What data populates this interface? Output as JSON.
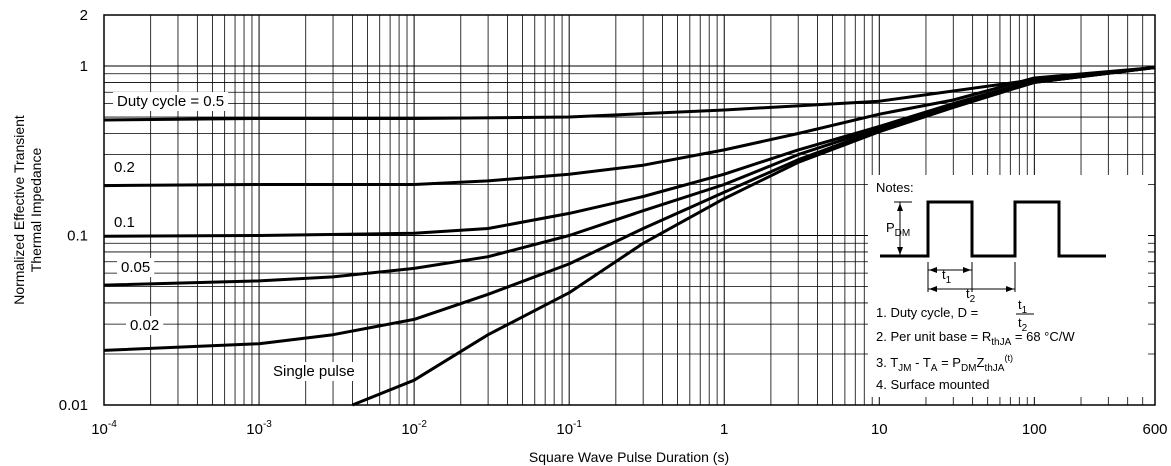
{
  "chart_data": {
    "type": "line",
    "x_scale": "log",
    "y_scale": "log",
    "xlim": [
      0.0001,
      600
    ],
    "ylim": [
      0.01,
      2
    ],
    "grid": true,
    "xlabel": "Square Wave Pulse Duration (s)",
    "ylabel_line1": "Normalized Effective Transient",
    "ylabel_line2": "Thermal Impedance",
    "x_ticks": [
      {
        "value": 0.0001,
        "base": "10",
        "exp": "-4",
        "label": "10^-4"
      },
      {
        "value": 0.001,
        "base": "10",
        "exp": "-3",
        "label": "10^-3"
      },
      {
        "value": 0.01,
        "base": "10",
        "exp": "-2",
        "label": "10^-2"
      },
      {
        "value": 0.1,
        "base": "10",
        "exp": "-1",
        "label": "10^-1"
      },
      {
        "value": 1,
        "base": "1",
        "exp": "",
        "label": "1"
      },
      {
        "value": 10,
        "base": "10",
        "exp": "",
        "label": "10"
      },
      {
        "value": 100,
        "base": "100",
        "exp": "",
        "label": "100"
      },
      {
        "value": 600,
        "base": "600",
        "exp": "",
        "label": "600"
      }
    ],
    "y_ticks": [
      {
        "value": 2,
        "label": "2"
      },
      {
        "value": 1,
        "label": "1"
      },
      {
        "value": 0.1,
        "label": "0.1"
      },
      {
        "value": 0.01,
        "label": "0.01"
      }
    ],
    "series": [
      {
        "name": "Duty cycle = 0.5",
        "points": [
          [
            0.0001,
            0.48
          ],
          [
            0.001,
            0.49
          ],
          [
            0.01,
            0.49
          ],
          [
            0.1,
            0.5
          ],
          [
            1,
            0.55
          ],
          [
            10,
            0.62
          ],
          [
            100,
            0.83
          ],
          [
            600,
            0.98
          ]
        ]
      },
      {
        "name": "0.2",
        "points": [
          [
            0.0001,
            0.197
          ],
          [
            0.001,
            0.2
          ],
          [
            0.01,
            0.2
          ],
          [
            0.03,
            0.21
          ],
          [
            0.1,
            0.23
          ],
          [
            0.3,
            0.26
          ],
          [
            1,
            0.32
          ],
          [
            3,
            0.4
          ],
          [
            10,
            0.52
          ],
          [
            30,
            0.63
          ],
          [
            100,
            0.85
          ],
          [
            600,
            0.98
          ]
        ]
      },
      {
        "name": "0.1",
        "points": [
          [
            0.0001,
            0.099
          ],
          [
            0.001,
            0.1
          ],
          [
            0.01,
            0.103
          ],
          [
            0.03,
            0.11
          ],
          [
            0.1,
            0.135
          ],
          [
            0.3,
            0.17
          ],
          [
            1,
            0.23
          ],
          [
            3,
            0.32
          ],
          [
            10,
            0.44
          ],
          [
            30,
            0.6
          ],
          [
            100,
            0.82
          ],
          [
            600,
            0.98
          ]
        ]
      },
      {
        "name": "0.05",
        "points": [
          [
            0.0001,
            0.051
          ],
          [
            0.001,
            0.054
          ],
          [
            0.003,
            0.057
          ],
          [
            0.01,
            0.064
          ],
          [
            0.03,
            0.075
          ],
          [
            0.1,
            0.1
          ],
          [
            0.3,
            0.14
          ],
          [
            1,
            0.2
          ],
          [
            3,
            0.3
          ],
          [
            10,
            0.43
          ],
          [
            30,
            0.59
          ],
          [
            100,
            0.8
          ],
          [
            600,
            0.98
          ]
        ]
      },
      {
        "name": "0.02",
        "points": [
          [
            0.0001,
            0.021
          ],
          [
            0.001,
            0.023
          ],
          [
            0.003,
            0.026
          ],
          [
            0.01,
            0.032
          ],
          [
            0.03,
            0.045
          ],
          [
            0.1,
            0.068
          ],
          [
            0.3,
            0.11
          ],
          [
            1,
            0.18
          ],
          [
            3,
            0.28
          ],
          [
            10,
            0.42
          ],
          [
            30,
            0.58
          ],
          [
            100,
            0.8
          ],
          [
            600,
            0.98
          ]
        ]
      },
      {
        "name": "Single pulse",
        "points": [
          [
            0.004,
            0.01
          ],
          [
            0.01,
            0.014
          ],
          [
            0.03,
            0.026
          ],
          [
            0.1,
            0.046
          ],
          [
            0.3,
            0.09
          ],
          [
            1,
            0.165
          ],
          [
            3,
            0.27
          ],
          [
            10,
            0.41
          ],
          [
            30,
            0.57
          ],
          [
            100,
            0.8
          ],
          [
            600,
            0.98
          ]
        ]
      }
    ],
    "series_labels": [
      {
        "name": "Duty cycle = 0.5"
      },
      {
        "name": "0.2"
      },
      {
        "name": "0.1"
      },
      {
        "name": "0.05"
      },
      {
        "name": "0.02"
      },
      {
        "name": "Single pulse"
      }
    ],
    "notes": {
      "title": "Notes:",
      "pdm": {
        "base": "P",
        "sub": "DM"
      },
      "t1": {
        "base": "t",
        "sub": "1"
      },
      "t2": {
        "base": "t",
        "sub": "2"
      },
      "note1": {
        "text": "1. Duty cycle, D =",
        "num_base": "t",
        "num_sub": "1",
        "den_base": "t",
        "den_sub": "2"
      },
      "note2": {
        "text": "2. Per unit base = R",
        "sub": "thJA",
        "tail": " = 68 °C/W"
      },
      "note3": {
        "p1": "3. T",
        "s1": "JM",
        "p2": " - T",
        "s2": "A",
        "p3": " = P",
        "s3": "DM",
        "p4": "Z",
        "s4": "thJA",
        "sup": "(t)"
      },
      "note4": "4. Surface mounted"
    }
  }
}
